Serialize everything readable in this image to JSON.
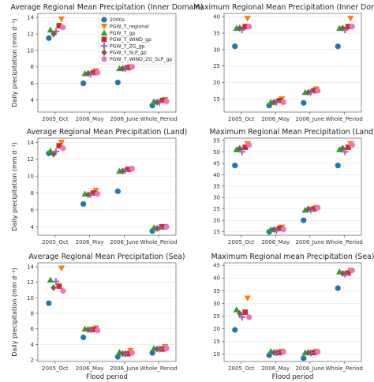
{
  "colors": {
    "2000s": "#1f77b4",
    "PGW_T_regional": "#ff7f0e",
    "PGW_T_gp": "#2ca02c",
    "PGW_T_WIND_gp": "#d62728",
    "PGW_T_ZG_gp": "#9467bd",
    "PGW_T_SLP_gp": "#8c564b",
    "PGW_T_WIND_ZG_SLP_gp": "#e377c2"
  },
  "chart_data": [
    {
      "type": "scatter",
      "title": "Average Regional Mean Precipitation (Inner Domain)",
      "xlabel": "",
      "ylabel": "Daily precipitation (mm d⁻¹)",
      "categories": [
        "2005_Oct",
        "2006_May",
        "2006_June",
        "Whole_Period"
      ],
      "ylim": [
        2.5,
        14.5
      ],
      "yticks": [
        4,
        6,
        8,
        10,
        12,
        14
      ],
      "legend": {
        "placement": "top",
        "labels": [
          "2000s",
          "PGW_T_regional",
          "PGW_T_gp",
          "PGW_T_WIND_gp",
          "PGW_T_ZG_gp",
          "PGW_T_SLP_gp",
          "PGW_T_WIND_ZG_SLP_gp"
        ]
      },
      "series": [
        {
          "name": "2000s",
          "marker": "circle",
          "values": [
            11.5,
            6.0,
            6.1,
            3.3
          ]
        },
        {
          "name": "PGW_T_regional",
          "marker": "triangle-down",
          "values": [
            13.8,
            7.5,
            8.0,
            4.0
          ]
        },
        {
          "name": "PGW_T_gp",
          "marker": "triangle-up",
          "values": [
            12.5,
            7.2,
            7.8,
            3.8
          ]
        },
        {
          "name": "PGW_T_WIND_gp",
          "marker": "square",
          "values": [
            13.0,
            7.3,
            7.9,
            3.9
          ]
        },
        {
          "name": "PGW_T_ZG_gp",
          "marker": "plus",
          "values": [
            12.3,
            7.1,
            7.8,
            3.7
          ]
        },
        {
          "name": "PGW_T_SLP_gp",
          "marker": "diamond",
          "values": [
            12.0,
            7.2,
            7.8,
            3.7
          ]
        },
        {
          "name": "PGW_T_WIND_ZG_SLP_gp",
          "marker": "hexagon",
          "values": [
            12.8,
            7.3,
            8.0,
            3.8
          ]
        }
      ]
    },
    {
      "type": "scatter",
      "title": "Maximum Regional Mean Precipitation (Inner Domain)",
      "xlabel": "",
      "ylabel": "",
      "categories": [
        "2005_Oct",
        "2006_May",
        "2006_June",
        "Whole_Period"
      ],
      "ylim": [
        11,
        41
      ],
      "yticks": [
        15,
        20,
        25,
        30,
        35,
        40
      ],
      "series": [
        {
          "name": "2000s",
          "marker": "circle",
          "values": [
            31,
            13,
            13.8,
            31
          ]
        },
        {
          "name": "PGW_T_regional",
          "marker": "triangle-down",
          "values": [
            39.5,
            15,
            18,
            39.5
          ]
        },
        {
          "name": "PGW_T_gp",
          "marker": "triangle-up",
          "values": [
            36.5,
            14,
            17,
            36.5
          ]
        },
        {
          "name": "PGW_T_WIND_gp",
          "marker": "square",
          "values": [
            37,
            14.5,
            17.5,
            37
          ]
        },
        {
          "name": "PGW_T_ZG_gp",
          "marker": "plus",
          "values": [
            36,
            14,
            17,
            36
          ]
        },
        {
          "name": "PGW_T_SLP_gp",
          "marker": "diamond",
          "values": [
            36.5,
            14,
            17,
            36.5
          ]
        },
        {
          "name": "PGW_T_WIND_ZG_SLP_gp",
          "marker": "hexagon",
          "values": [
            37,
            14,
            17.5,
            37
          ]
        }
      ]
    },
    {
      "type": "scatter",
      "title": "Average Regional Mean Precipitation (Land)",
      "xlabel": "",
      "ylabel": "Daily precipitation (mm d⁻¹)",
      "categories": [
        "2005_Oct",
        "2006_May",
        "2006_June",
        "Whole_Period"
      ],
      "ylim": [
        3,
        14.5
      ],
      "yticks": [
        4,
        6,
        8,
        10,
        12,
        14
      ],
      "series": [
        {
          "name": "2000s",
          "marker": "circle",
          "values": [
            12.7,
            6.7,
            8.2,
            3.5
          ]
        },
        {
          "name": "PGW_T_regional",
          "marker": "triangle-down",
          "values": [
            14.0,
            8.3,
            10.8,
            4.0
          ]
        },
        {
          "name": "PGW_T_gp",
          "marker": "triangle-up",
          "values": [
            13.0,
            7.9,
            10.6,
            3.9
          ]
        },
        {
          "name": "PGW_T_WIND_gp",
          "marker": "square",
          "values": [
            13.6,
            8.0,
            10.8,
            4.0
          ]
        },
        {
          "name": "PGW_T_ZG_gp",
          "marker": "plus",
          "values": [
            12.9,
            7.8,
            10.6,
            3.9
          ]
        },
        {
          "name": "PGW_T_SLP_gp",
          "marker": "diamond",
          "values": [
            12.6,
            7.8,
            10.6,
            3.8
          ]
        },
        {
          "name": "PGW_T_WIND_ZG_SLP_gp",
          "marker": "hexagon",
          "values": [
            13.3,
            7.9,
            10.9,
            4.0
          ]
        }
      ]
    },
    {
      "type": "scatter",
      "title": "Maximum Regional Mean Precipitation (Land)",
      "xlabel": "",
      "ylabel": "",
      "categories": [
        "2005_Oct",
        "2006_May",
        "2006_June",
        "Whole_Period"
      ],
      "ylim": [
        13.5,
        56
      ],
      "yticks": [
        15,
        20,
        25,
        30,
        35,
        40,
        45,
        50,
        55
      ],
      "series": [
        {
          "name": "2000s",
          "marker": "circle",
          "values": [
            44,
            15,
            20,
            44
          ]
        },
        {
          "name": "PGW_T_regional",
          "marker": "triangle-down",
          "values": [
            53.5,
            17,
            25.5,
            53.5
          ]
        },
        {
          "name": "PGW_T_gp",
          "marker": "triangle-up",
          "values": [
            51,
            16,
            24.5,
            51
          ]
        },
        {
          "name": "PGW_T_WIND_gp",
          "marker": "square",
          "values": [
            52,
            16.5,
            25,
            52
          ]
        },
        {
          "name": "PGW_T_ZG_gp",
          "marker": "plus",
          "values": [
            50,
            15.5,
            24.5,
            50
          ]
        },
        {
          "name": "PGW_T_SLP_gp",
          "marker": "diamond",
          "values": [
            51.5,
            16,
            25,
            51.5
          ]
        },
        {
          "name": "PGW_T_WIND_ZG_SLP_gp",
          "marker": "hexagon",
          "values": [
            53,
            16,
            25.5,
            53
          ]
        }
      ]
    },
    {
      "type": "scatter",
      "title": "Average Regional Mean Precipitation (Sea)",
      "xlabel": "Flood period",
      "ylabel": "Daily precipitation (mm d⁻¹)",
      "categories": [
        "2005_Oct",
        "2006_May",
        "2006_June",
        "Whole_Period"
      ],
      "ylim": [
        1.8,
        14.5
      ],
      "yticks": [
        2,
        4,
        6,
        8,
        10,
        12,
        14
      ],
      "series": [
        {
          "name": "2000s",
          "marker": "circle",
          "values": [
            9.3,
            4.9,
            2.4,
            2.9
          ]
        },
        {
          "name": "PGW_T_regional",
          "marker": "triangle-down",
          "values": [
            13.8,
            6.1,
            3.2,
            3.7
          ]
        },
        {
          "name": "PGW_T_gp",
          "marker": "triangle-up",
          "values": [
            12.3,
            6.0,
            3.0,
            3.5
          ]
        },
        {
          "name": "PGW_T_WIND_gp",
          "marker": "square",
          "values": [
            11.5,
            5.9,
            2.8,
            3.4
          ]
        },
        {
          "name": "PGW_T_ZG_gp",
          "marker": "plus",
          "values": [
            12.1,
            5.9,
            2.8,
            3.4
          ]
        },
        {
          "name": "PGW_T_SLP_gp",
          "marker": "diamond",
          "values": [
            11.3,
            5.9,
            2.8,
            3.4
          ]
        },
        {
          "name": "PGW_T_WIND_ZG_SLP_gp",
          "marker": "hexagon",
          "values": [
            10.9,
            5.8,
            2.9,
            3.5
          ]
        }
      ]
    },
    {
      "type": "scatter",
      "title": "Maximum Regional mean Precipitation (Sea)",
      "xlabel": "Flood period",
      "ylabel": "",
      "categories": [
        "2005_Oct",
        "2006_May",
        "2006_June",
        "Whole_Period"
      ],
      "ylim": [
        7,
        46
      ],
      "yticks": [
        10,
        15,
        20,
        25,
        30,
        35,
        40,
        45
      ],
      "series": [
        {
          "name": "2000s",
          "marker": "circle",
          "values": [
            19.5,
            9.5,
            8.3,
            36
          ]
        },
        {
          "name": "PGW_T_regional",
          "marker": "triangle-down",
          "values": [
            32,
            11,
            11,
            43
          ]
        },
        {
          "name": "PGW_T_gp",
          "marker": "triangle-up",
          "values": [
            27.5,
            11,
            10.5,
            42.5
          ]
        },
        {
          "name": "PGW_T_WIND_gp",
          "marker": "square",
          "values": [
            26.5,
            10.5,
            10.5,
            42
          ]
        },
        {
          "name": "PGW_T_ZG_gp",
          "marker": "plus",
          "values": [
            24.5,
            10.5,
            10.3,
            41.5
          ]
        },
        {
          "name": "PGW_T_SLP_gp",
          "marker": "diamond",
          "values": [
            26,
            10.5,
            10.5,
            41.8
          ]
        },
        {
          "name": "PGW_T_WIND_ZG_SLP_gp",
          "marker": "hexagon",
          "values": [
            24.5,
            10.8,
            10.8,
            43
          ]
        }
      ]
    }
  ]
}
